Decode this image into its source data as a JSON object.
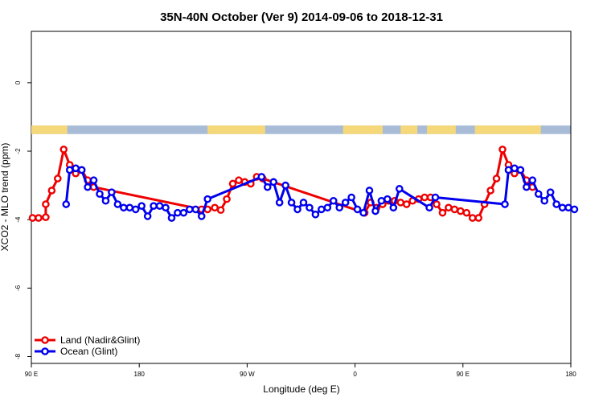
{
  "chart_data": {
    "type": "line",
    "title": "35N-40N October (Ver 9)   2014-09-06 to 2018-12-31",
    "xlabel": "Longitude (deg E)",
    "ylabel": "XCO2 - MLO trend (ppm)",
    "xlim": [
      90,
      540
    ],
    "ylim": [
      -8.2,
      1.5
    ],
    "x_ticks": [
      90,
      180,
      270,
      360,
      450,
      540
    ],
    "x_tick_labels": [
      "90 E",
      "180",
      "90 W",
      "0",
      "90 E",
      "180"
    ],
    "y_ticks": [
      0,
      -2,
      -4,
      -6,
      -8
    ],
    "y_tick_labels": [
      "0",
      "-2",
      "-4",
      "-6",
      "-8"
    ],
    "land_ocean_band": {
      "y_range": [
        -1.5,
        -1.25
      ],
      "ocean_color": "#a8bcd8",
      "land_color": "#f5d87a",
      "land_segments": [
        [
          90,
          120
        ],
        [
          237,
          285
        ],
        [
          350,
          383
        ],
        [
          398,
          412
        ],
        [
          420,
          444
        ],
        [
          460,
          515
        ]
      ]
    },
    "legend_position": "bottom-left",
    "series": [
      {
        "name": "Land (Nadir&Glint)",
        "color": "#ee0000",
        "points": [
          [
            91,
            -3.95
          ],
          [
            96,
            -3.95
          ],
          [
            102,
            -3.93
          ],
          [
            102,
            -3.55
          ],
          [
            107,
            -3.15
          ],
          [
            112,
            -2.8
          ],
          [
            117,
            -1.95
          ],
          [
            122,
            -2.4
          ],
          [
            127,
            -2.65
          ],
          [
            132,
            -2.55
          ],
          [
            137,
            -2.85
          ],
          [
            142,
            -3.05
          ],
          [
            232,
            -3.7
          ],
          [
            237,
            -3.7
          ],
          [
            243,
            -3.65
          ],
          [
            248,
            -3.72
          ],
          [
            253,
            -3.4
          ],
          [
            258,
            -2.95
          ],
          [
            263,
            -2.85
          ],
          [
            268,
            -2.9
          ],
          [
            273,
            -2.95
          ],
          [
            278,
            -2.75
          ],
          [
            283,
            -2.8
          ],
          [
            368,
            -3.8
          ],
          [
            373,
            -3.5
          ],
          [
            378,
            -3.65
          ],
          [
            383,
            -3.55
          ],
          [
            388,
            -3.45
          ],
          [
            393,
            -3.45
          ],
          [
            398,
            -3.5
          ],
          [
            403,
            -3.55
          ],
          [
            408,
            -3.45
          ],
          [
            413,
            -3.4
          ],
          [
            418,
            -3.35
          ],
          [
            423,
            -3.35
          ],
          [
            428,
            -3.55
          ],
          [
            433,
            -3.8
          ],
          [
            438,
            -3.65
          ],
          [
            443,
            -3.7
          ],
          [
            448,
            -3.75
          ],
          [
            453,
            -3.8
          ],
          [
            458,
            -3.95
          ],
          [
            463,
            -3.95
          ],
          [
            468,
            -3.55
          ],
          [
            473,
            -3.15
          ],
          [
            478,
            -2.8
          ],
          [
            483,
            -1.95
          ],
          [
            488,
            -2.4
          ],
          [
            493,
            -2.65
          ],
          [
            498,
            -2.55
          ],
          [
            503,
            -2.85
          ],
          [
            508,
            -3.05
          ]
        ]
      },
      {
        "name": "Ocean (Glint)",
        "color": "#0000ee",
        "points": [
          [
            119,
            -3.55
          ],
          [
            122,
            -2.55
          ],
          [
            127,
            -2.5
          ],
          [
            132,
            -2.55
          ],
          [
            137,
            -3.05
          ],
          [
            142,
            -2.85
          ],
          [
            147,
            -3.25
          ],
          [
            152,
            -3.45
          ],
          [
            157,
            -3.2
          ],
          [
            162,
            -3.55
          ],
          [
            167,
            -3.65
          ],
          [
            172,
            -3.65
          ],
          [
            177,
            -3.7
          ],
          [
            182,
            -3.6
          ],
          [
            187,
            -3.9
          ],
          [
            192,
            -3.6
          ],
          [
            197,
            -3.6
          ],
          [
            202,
            -3.65
          ],
          [
            207,
            -3.95
          ],
          [
            212,
            -3.8
          ],
          [
            217,
            -3.8
          ],
          [
            222,
            -3.7
          ],
          [
            227,
            -3.7
          ],
          [
            232,
            -3.9
          ],
          [
            237,
            -3.4
          ],
          [
            282,
            -2.75
          ],
          [
            287,
            -3.05
          ],
          [
            292,
            -2.9
          ],
          [
            297,
            -3.5
          ],
          [
            302,
            -3.0
          ],
          [
            307,
            -3.5
          ],
          [
            312,
            -3.7
          ],
          [
            317,
            -3.5
          ],
          [
            322,
            -3.65
          ],
          [
            327,
            -3.85
          ],
          [
            332,
            -3.7
          ],
          [
            337,
            -3.65
          ],
          [
            342,
            -3.45
          ],
          [
            347,
            -3.65
          ],
          [
            352,
            -3.5
          ],
          [
            357,
            -3.35
          ],
          [
            362,
            -3.7
          ],
          [
            367,
            -3.8
          ],
          [
            372,
            -3.15
          ],
          [
            377,
            -3.75
          ],
          [
            382,
            -3.45
          ],
          [
            387,
            -3.4
          ],
          [
            392,
            -3.65
          ],
          [
            397,
            -3.1
          ],
          [
            422,
            -3.65
          ],
          [
            427,
            -3.35
          ],
          [
            485,
            -3.55
          ],
          [
            488,
            -2.55
          ],
          [
            493,
            -2.5
          ],
          [
            498,
            -2.55
          ],
          [
            503,
            -3.05
          ],
          [
            508,
            -2.85
          ],
          [
            513,
            -3.25
          ],
          [
            518,
            -3.45
          ],
          [
            523,
            -3.2
          ],
          [
            528,
            -3.55
          ],
          [
            533,
            -3.65
          ],
          [
            538,
            -3.65
          ],
          [
            543,
            -3.7
          ]
        ]
      }
    ]
  }
}
